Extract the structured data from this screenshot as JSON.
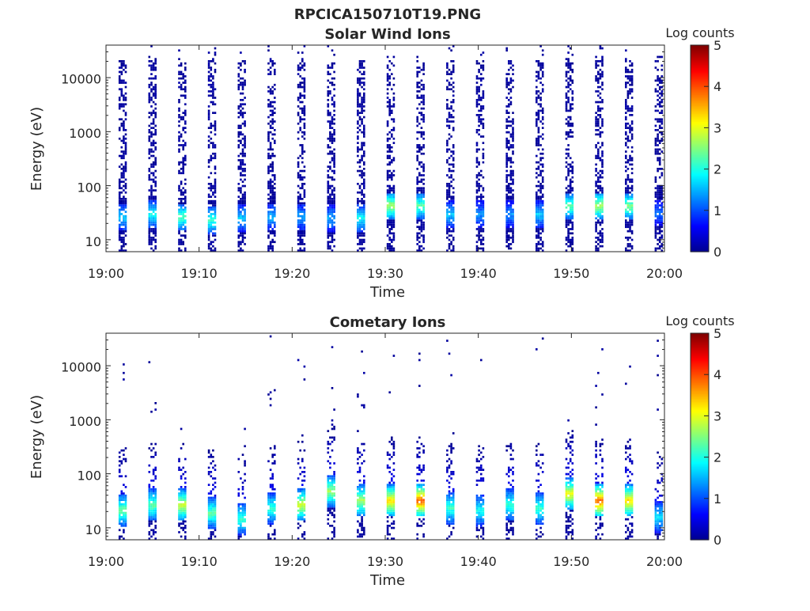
{
  "figure": {
    "main_title": "RPCICA150710T19.PNG"
  },
  "colors": {
    "scale": [
      "#00008f",
      "#0000ff",
      "#007fff",
      "#00ffff",
      "#7fff7f",
      "#ffff00",
      "#ff7f00",
      "#ff0000",
      "#7f0000"
    ],
    "axis": "#262626",
    "background": "#ffffff"
  },
  "chart_data": [
    {
      "type": "heatmap",
      "title": "Solar Wind Ions",
      "xlabel": "Time",
      "ylabel": "Energy (eV)",
      "y_scale": "log",
      "ylim": [
        6,
        40000
      ],
      "xlim": [
        "19:00",
        "20:00"
      ],
      "x_ticks": [
        "19:00",
        "19:10",
        "19:20",
        "19:30",
        "19:40",
        "19:50",
        "20:00"
      ],
      "y_ticks": [
        "10",
        "100",
        "1000",
        "10000"
      ],
      "grid": false,
      "colorbar": {
        "label": "Log counts",
        "ticks": [
          "0",
          "1",
          "2",
          "3",
          "4",
          "5"
        ],
        "range": [
          0,
          5
        ],
        "colormap": "jet"
      },
      "sweep_start_minutes": [
        1.8,
        5.0,
        8.2,
        11.4,
        14.6,
        17.8,
        21.0,
        24.2,
        27.4,
        30.6,
        33.8,
        37.0,
        40.2,
        43.4,
        46.6,
        49.8,
        53.0,
        56.2,
        59.4
      ],
      "sweep_peak_energy_eV": [
        25,
        28,
        25,
        22,
        24,
        25,
        25,
        24,
        24,
        40,
        40,
        28,
        28,
        28,
        28,
        40,
        40,
        40,
        30
      ],
      "sweep_peak_log_counts": [
        1.5,
        1.8,
        2.2,
        2.0,
        1.5,
        1.4,
        1.3,
        1.3,
        1.8,
        2.6,
        2.2,
        1.5,
        1.2,
        1.2,
        1.5,
        2.2,
        2.6,
        2.4,
        1.0
      ]
    },
    {
      "type": "heatmap",
      "title": "Cometary Ions",
      "xlabel": "Time",
      "ylabel": "Energy (eV)",
      "y_scale": "log",
      "ylim": [
        6,
        40000
      ],
      "xlim": [
        "19:00",
        "20:00"
      ],
      "x_ticks": [
        "19:00",
        "19:10",
        "19:20",
        "19:30",
        "19:40",
        "19:50",
        "20:00"
      ],
      "y_ticks": [
        "10",
        "100",
        "1000",
        "10000"
      ],
      "grid": false,
      "colorbar": {
        "label": "Log counts",
        "ticks": [
          "0",
          "1",
          "2",
          "3",
          "4",
          "5"
        ],
        "range": [
          0,
          5
        ],
        "colormap": "jet"
      },
      "sweep_start_minutes": [
        1.8,
        5.0,
        8.2,
        11.4,
        14.6,
        17.8,
        21.0,
        24.2,
        27.4,
        30.6,
        33.8,
        37.0,
        40.2,
        43.4,
        46.6,
        49.8,
        53.0,
        56.2,
        59.4
      ],
      "sweep_peak_energy_eV": [
        20,
        25,
        25,
        18,
        14,
        22,
        25,
        45,
        30,
        30,
        30,
        22,
        20,
        25,
        22,
        40,
        30,
        30,
        15
      ],
      "sweep_peak_log_counts": [
        2.3,
        2.2,
        2.8,
        2.2,
        2.0,
        2.0,
        2.8,
        2.5,
        2.6,
        3.2,
        3.8,
        2.0,
        1.8,
        2.0,
        2.0,
        3.0,
        3.8,
        3.2,
        1.6
      ]
    }
  ]
}
